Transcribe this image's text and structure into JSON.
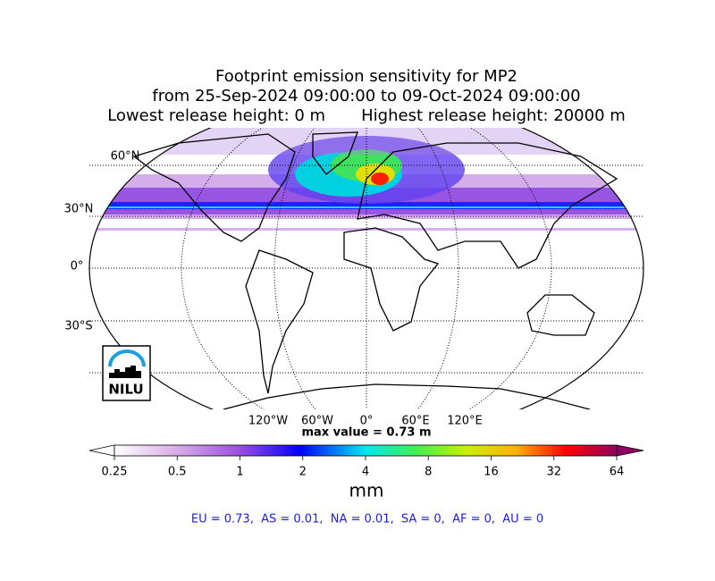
{
  "header": {
    "title_lines": [
      "Footprint emission sensitivity for MP2",
      "from 25-Sep-2024 09:00:00 to 09-Oct-2024 09:00:00",
      "Lowest release height: 0 m       Highest release height: 20000 m"
    ]
  },
  "map": {
    "lat_labels": [
      "60°N",
      "30°N",
      "0°",
      "30°S"
    ],
    "lon_labels": [
      "120°W",
      "60°W",
      "0°",
      "60°E",
      "120°E"
    ],
    "max_value": "max value = 0.73 m"
  },
  "logo": "NILU",
  "colorbar": {
    "ticks": [
      0.25,
      0.5,
      1,
      2,
      4,
      8,
      16,
      32,
      64
    ],
    "scale": "log",
    "label": "mm"
  },
  "summary": "EU = 0.73,  AS = 0.01,  NA = 0.01,  SA = 0,  AF = 0,  AU = 0"
}
